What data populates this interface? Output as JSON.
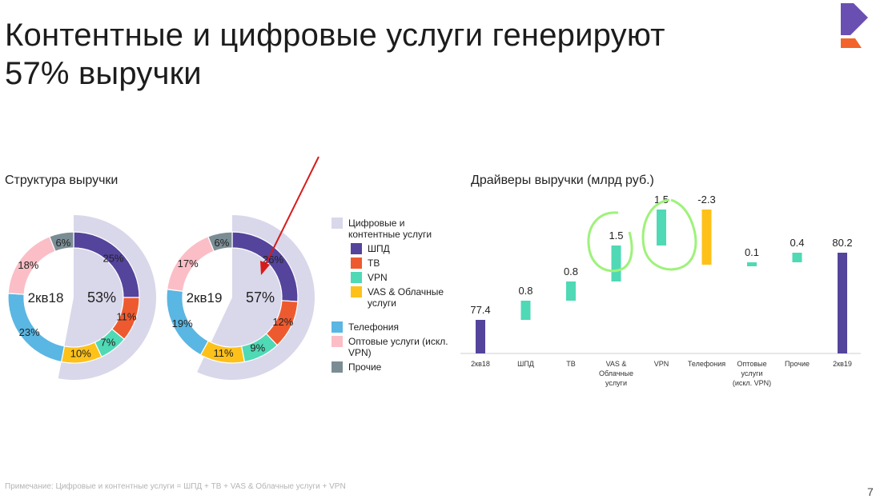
{
  "title": {
    "line1": "Контентные и цифровые услуги генерируют",
    "line2": "57% выручки"
  },
  "colors": {
    "digital_content": "#d9d7ea",
    "shpd": "#54449c",
    "tv": "#ee5a2f",
    "vpn": "#4fd9b5",
    "vas_cloud": "#fdc11a",
    "telephony": "#5ab6e3",
    "wholesale": "#fbbec6",
    "other": "#7b8d94",
    "annotation_green": "#9ef27a",
    "annotation_red": "#d71b1b",
    "logo_purple": "#6a4fb3",
    "logo_orange": "#f2642c"
  },
  "structure": {
    "title": "Структура выручки"
  },
  "drivers": {
    "title": "Драйверы выручки (млрд руб.)"
  },
  "legend": {
    "items": [
      {
        "label": "Цифровые и контентные услуги",
        "color_key": "digital_content",
        "sub": false
      },
      {
        "label": "ШПД",
        "color_key": "shpd",
        "sub": true
      },
      {
        "label": "ТВ",
        "color_key": "tv",
        "sub": true
      },
      {
        "label": "VPN",
        "color_key": "vpn",
        "sub": true
      },
      {
        "label": "VAS & Облачные услуги",
        "color_key": "vas_cloud",
        "sub": true
      },
      {
        "label": "Телефония",
        "color_key": "telephony",
        "sub": false
      },
      {
        "label": "Оптовые услуги (искл. VPN)",
        "color_key": "wholesale",
        "sub": false
      },
      {
        "label": "Прочие",
        "color_key": "other",
        "sub": false
      }
    ]
  },
  "chart_data": [
    {
      "type": "pie",
      "subtype": "donut",
      "center_label": "2кв18",
      "highlight_label": "53%",
      "highlight_value": 53,
      "slices": [
        {
          "name": "ШПД",
          "value": 25,
          "label": "25%"
        },
        {
          "name": "ТВ",
          "value": 11,
          "label": "11%"
        },
        {
          "name": "VPN",
          "value": 7,
          "label": "7%"
        },
        {
          "name": "VAS & Облачные услуги",
          "value": 10,
          "label": "10%"
        },
        {
          "name": "Телефония",
          "value": 23,
          "label": "23%"
        },
        {
          "name": "Оптовые услуги (искл. VPN)",
          "value": 18,
          "label": "18%"
        },
        {
          "name": "Прочие",
          "value": 6,
          "label": "6%"
        }
      ]
    },
    {
      "type": "pie",
      "subtype": "donut",
      "center_label": "2кв19",
      "highlight_label": "57%",
      "highlight_value": 57,
      "slices": [
        {
          "name": "ШПД",
          "value": 26,
          "label": "26%"
        },
        {
          "name": "ТВ",
          "value": 12,
          "label": "12%"
        },
        {
          "name": "VPN",
          "value": 9,
          "label": "9%"
        },
        {
          "name": "VAS & Облачные услуги",
          "value": 11,
          "label": "11%"
        },
        {
          "name": "Телефония",
          "value": 19,
          "label": "19%"
        },
        {
          "name": "Оптовые услуги (искл. VPN)",
          "value": 17,
          "label": "17%"
        },
        {
          "name": "Прочие",
          "value": 6,
          "label": "6%"
        }
      ]
    },
    {
      "type": "bar",
      "subtype": "waterfall",
      "categories": [
        "2кв18",
        "ШПД",
        "ТВ",
        "VAS & Облачные услуги",
        "VPN",
        "Телефония",
        "Оптовые услуги (искл. VPN)",
        "Прочие",
        "2кв19"
      ],
      "values": [
        77.4,
        0.8,
        0.8,
        1.5,
        1.5,
        -2.3,
        0.1,
        0.4,
        80.2
      ],
      "value_labels": [
        "77.4",
        "0.8",
        "0.8",
        "1.5",
        "1.5",
        "-2.3",
        "0.1",
        "0.4",
        "80.2"
      ],
      "kinds": [
        "total",
        "delta",
        "delta",
        "delta",
        "delta",
        "delta",
        "delta",
        "delta",
        "total"
      ]
    }
  ],
  "footer": {
    "note": "Примечание: Цифровые и контентные услуги = ШПД + ТВ + VAS & Облачные услуги + VPN",
    "page": "7"
  }
}
